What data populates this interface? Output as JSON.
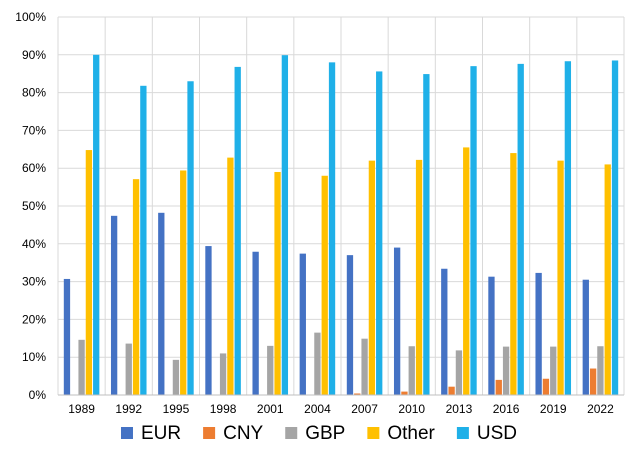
{
  "chart_data": {
    "type": "bar",
    "categories": [
      "1989",
      "1992",
      "1995",
      "1998",
      "2001",
      "2004",
      "2007",
      "2010",
      "2013",
      "2016",
      "2019",
      "2022"
    ],
    "series": [
      {
        "name": "EUR",
        "color": "#4472C4",
        "values": [
          30.7,
          47.4,
          48.2,
          39.4,
          37.9,
          37.4,
          37.0,
          39.0,
          33.4,
          31.3,
          32.3,
          30.5
        ]
      },
      {
        "name": "CNY",
        "color": "#ED7D31",
        "values": [
          0,
          0,
          0,
          0,
          0,
          0,
          0.4,
          0.9,
          2.2,
          4.0,
          4.3,
          7.0
        ]
      },
      {
        "name": "GBP",
        "color": "#A5A5A5",
        "values": [
          14.6,
          13.6,
          9.3,
          11.0,
          13.0,
          16.5,
          14.9,
          12.9,
          11.8,
          12.8,
          12.8,
          12.9
        ]
      },
      {
        "name": "Other",
        "color": "#FFC000",
        "values": [
          64.8,
          57.1,
          59.4,
          62.8,
          59.0,
          58.0,
          62.0,
          62.2,
          65.5,
          64.0,
          62.0,
          61.0
        ]
      },
      {
        "name": "USD",
        "color": "#1FB0E8",
        "values": [
          90.0,
          81.8,
          83.0,
          86.8,
          89.9,
          88.0,
          85.6,
          84.9,
          87.0,
          87.6,
          88.3,
          88.5
        ]
      }
    ],
    "yticks": [
      "0%",
      "10%",
      "20%",
      "30%",
      "40%",
      "50%",
      "60%",
      "70%",
      "80%",
      "90%",
      "100%"
    ],
    "ylim": [
      0,
      100
    ],
    "grid": true,
    "legend_position": "bottom"
  }
}
